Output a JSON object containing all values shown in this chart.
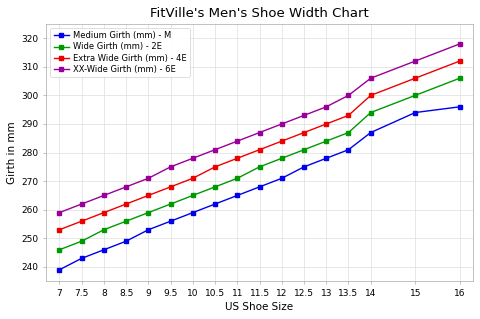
{
  "title": "FitVille's Men's Shoe Width Chart",
  "xlabel": "US Shoe Size",
  "ylabel": "Girth in mm",
  "shoe_sizes": [
    7.0,
    7.5,
    8.0,
    8.5,
    9.0,
    9.5,
    10.0,
    10.5,
    11.0,
    11.5,
    12.0,
    12.5,
    13.0,
    13.5,
    14.0,
    15.0,
    16.0
  ],
  "series": [
    {
      "label": "Medium Girth (mm) - M",
      "color": "#0000ee",
      "values": [
        239,
        243,
        246,
        249,
        253,
        256,
        259,
        262,
        265,
        268,
        271,
        275,
        278,
        281,
        287,
        294,
        296
      ]
    },
    {
      "label": "Wide Girth (mm) - 2E",
      "color": "#009900",
      "values": [
        246,
        249,
        253,
        256,
        259,
        262,
        265,
        268,
        271,
        275,
        278,
        281,
        284,
        287,
        294,
        300,
        306
      ]
    },
    {
      "label": "Extra Wide Girth (mm) - 4E",
      "color": "#ee0000",
      "values": [
        253,
        256,
        259,
        262,
        265,
        268,
        271,
        275,
        278,
        281,
        284,
        287,
        290,
        293,
        300,
        306,
        312
      ]
    },
    {
      "label": "XX-Wide Girth (mm) - 6E",
      "color": "#990099",
      "values": [
        259,
        262,
        265,
        268,
        271,
        275,
        278,
        281,
        284,
        287,
        290,
        293,
        296,
        300,
        306,
        312,
        318
      ]
    }
  ],
  "ylim": [
    235,
    325
  ],
  "yticks": [
    240,
    250,
    260,
    270,
    280,
    290,
    300,
    310,
    320
  ],
  "background_color": "#ffffff",
  "grid_color": "#dddddd",
  "title_fontsize": 9.5,
  "axis_label_fontsize": 7.5,
  "tick_fontsize": 6.5,
  "legend_fontsize": 6.0
}
